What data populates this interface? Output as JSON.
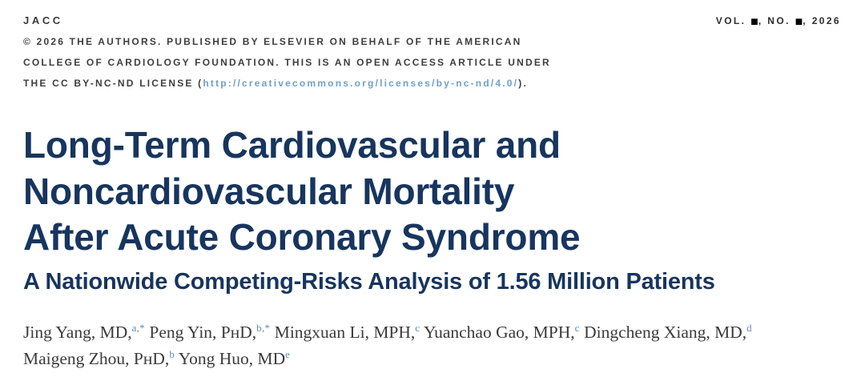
{
  "journal": {
    "name": "JACC",
    "volume": {
      "prefix": "VOL.",
      "square": "■",
      "mid": ", NO.",
      "suffix": ", 2026"
    },
    "copyright_line1": "© 2026 THE AUTHORS. PUBLISHED BY ELSEVIER ON BEHALF OF THE AMERICAN",
    "copyright_line2": "COLLEGE OF CARDIOLOGY FOUNDATION. THIS IS AN OPEN ACCESS ARTICLE UNDER",
    "copyright_line3_prefix": "THE CC BY-NC-ND LICENSE (",
    "license_url": "http://creativecommons.org/licenses/by-nc-nd/4.0/",
    "copyright_line3_suffix": ")."
  },
  "article": {
    "title_line1": "Long-Term Cardiovascular and",
    "title_line2": "Noncardiovascular Mortality",
    "title_line3": "After Acute Coronary Syndrome",
    "subtitle": "A Nationwide Competing-Risks Analysis of 1.56 Million Patients"
  },
  "authors": {
    "line1": [
      {
        "text": "Jing Yang, MD,",
        "sup": "a,*"
      },
      {
        "text": " Peng Yin, PʜD,",
        "sup": "b,*"
      },
      {
        "text": " Mingxuan Li, MPH,",
        "sup": "c"
      },
      {
        "text": " Yuanchao Gao, MPH,",
        "sup": "c"
      },
      {
        "text": " Dingcheng Xiang, MD,",
        "sup": "d"
      }
    ],
    "line2": [
      {
        "text": "Maigeng Zhou, PʜD,",
        "sup": "b"
      },
      {
        "text": " Yong Huo, MD",
        "sup": "e"
      }
    ]
  },
  "colors": {
    "title_navy": "#17355e",
    "masthead_gray": "#3e3e3e",
    "link_blue": "#6fa0c8",
    "superscript_blue": "#5d8cb8"
  }
}
